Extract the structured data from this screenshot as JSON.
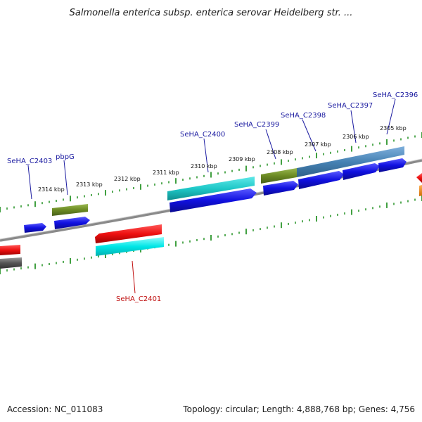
{
  "title": "Salmonella enterica subsp. enterica serovar Heidelberg str. ...",
  "footer": {
    "accession": "Accession: NC_011083",
    "summary": "Topology: circular; Length: 4,888,768 bp; Genes: 4,756"
  },
  "kbp_ticks": [
    "2314 kbp",
    "2313 kbp",
    "2312 kbp",
    "2311 kbp",
    "2310 kbp",
    "2309 kbp",
    "2308 kbp",
    "2307 kbp",
    "2306 kbp",
    "2305 kbp"
  ],
  "gene_labels": [
    {
      "text": "SeHA_C2403",
      "strand": "forward"
    },
    {
      "text": "pbpG",
      "strand": "forward"
    },
    {
      "text": "SeHA_C2400",
      "strand": "forward"
    },
    {
      "text": "SeHA_C2399",
      "strand": "forward"
    },
    {
      "text": "SeHA_C2398",
      "strand": "forward"
    },
    {
      "text": "SeHA_C2397",
      "strand": "forward"
    },
    {
      "text": "SeHA_C2396",
      "strand": "forward"
    },
    {
      "text": "SeHA_C2401",
      "strand": "reverse"
    }
  ],
  "colors": {
    "forward_label": "#1a1aa0",
    "reverse_label": "#c01010",
    "cds_blue": "#1010e0",
    "cds_red": "#ee1010",
    "cog_olive": "#6b8a23",
    "cog_cyan": "#1ec8c8",
    "cog_steel": "#4682b4",
    "cog_cyan_light": "#00e6e6",
    "tick_green": "#118811",
    "backbone": "#8a8a8a",
    "orange": "#ff8c00",
    "dark_gray": "#555555"
  }
}
